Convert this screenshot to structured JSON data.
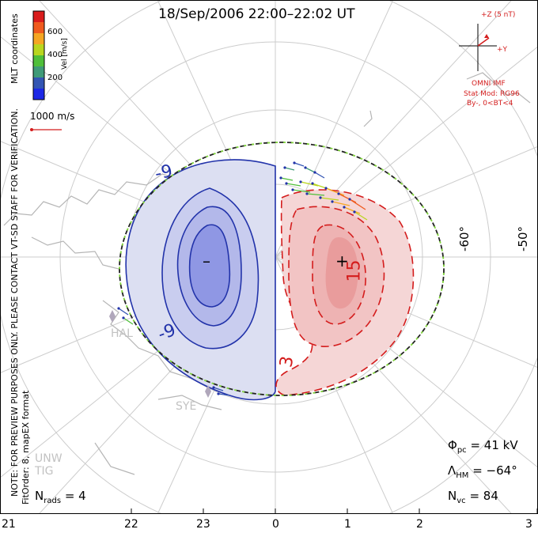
{
  "title": "18/Sep/2006 22:00–22:02 UT",
  "side_note_line1": "NOTE: FOR PREVIEW PURPOSES ONLY. PLEASE CONTACT VT-SD STAFF FOR VERIFICATION.",
  "side_note_line2": "FitOrder: 8, mapEX format",
  "coord_label": "MLT coordinates",
  "colorbar": {
    "label": "Vel [m/s]",
    "ticks": [
      "600",
      "400",
      "200"
    ],
    "colors": [
      "#d91c1c",
      "#ef5a1e",
      "#f5a623",
      "#b9d61f",
      "#4fbf3a",
      "#3f9a78",
      "#3355b3",
      "#1c28e6"
    ]
  },
  "velocity_scale": "1000 m/s",
  "imf": {
    "axis_z": "+Z (5 nT)",
    "axis_y": "+Y",
    "source": "OMNI IMF",
    "stat_mod": "Stat Mod: RG96",
    "condition": "By-, 0<BT<4"
  },
  "latitude_labels": [
    "-60°",
    "-50°"
  ],
  "contour_labels": {
    "neg_outer": "-9",
    "neg_inner": "-9",
    "pos_mid": "15",
    "pos_outer": "3"
  },
  "min_marker": "–",
  "max_marker": "+",
  "stations": [
    "HAL",
    "SYE",
    "UNW",
    "TIG"
  ],
  "stats": {
    "phi_symbol": "Φ",
    "phi_sub": "pc",
    "phi_value": "= 41 kV",
    "lambda_symbol": "Λ",
    "lambda_sub": "HM",
    "lambda_value": "= −64°",
    "nvc_symbol": "N",
    "nvc_sub": "vc",
    "nvc_value": "= 84",
    "nrads_symbol": "N",
    "nrads_sub": "rads",
    "nrads_value": "= 4"
  },
  "mlt_ticks": [
    "21",
    "22",
    "23",
    "0",
    "1",
    "2",
    "3"
  ],
  "colors": {
    "negative_potential": "#1a28b0",
    "positive_potential": "#d41c1c",
    "boundary_green": "#7fd33a",
    "grid": "#c8c8c8",
    "coast": "#b5b5b5"
  }
}
